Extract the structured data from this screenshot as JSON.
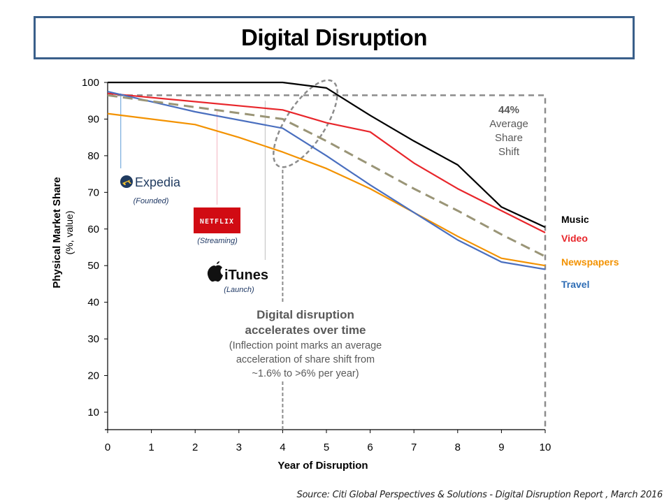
{
  "title": "Digital Disruption",
  "source": "Source: Citi Global Perspectives & Solutions - Digital Disruption Report , March 2016",
  "chart_data": {
    "type": "line",
    "title": "Digital Disruption",
    "xlabel": "Year of Disruption",
    "ylabel": "Physical Market Share",
    "ylabel_sub": "(%, value)",
    "x": [
      0,
      1,
      2,
      3,
      4,
      5,
      6,
      7,
      8,
      9,
      10
    ],
    "xlim": [
      0,
      10
    ],
    "ylim": [
      5,
      100
    ],
    "xticks": [
      "0",
      "1",
      "2",
      "3",
      "4",
      "5",
      "6",
      "7",
      "8",
      "9",
      "10"
    ],
    "yticks": [
      100,
      90,
      80,
      70,
      60,
      50,
      40,
      30,
      20,
      10
    ],
    "grid": false,
    "legend_position": "right",
    "series": [
      {
        "name": "Music",
        "color": "#000000",
        "style": "solid",
        "points": [
          [
            0,
            100
          ],
          [
            4,
            100
          ],
          [
            5,
            98.5
          ],
          [
            6,
            91
          ],
          [
            7,
            84
          ],
          [
            8,
            77.5
          ],
          [
            9,
            66
          ],
          [
            10,
            60.5
          ]
        ]
      },
      {
        "name": "Video",
        "color": "#e8262b",
        "style": "solid",
        "points": [
          [
            0,
            97
          ],
          [
            4,
            92.5
          ],
          [
            5,
            89
          ],
          [
            6,
            86.5
          ],
          [
            7,
            78
          ],
          [
            8,
            71
          ],
          [
            9,
            65
          ],
          [
            10,
            59
          ]
        ]
      },
      {
        "name": "Newspapers",
        "color": "#f39200",
        "style": "solid",
        "points": [
          [
            0,
            91.5
          ],
          [
            2,
            88.5
          ],
          [
            3,
            85
          ],
          [
            4,
            81
          ],
          [
            5,
            76.5
          ],
          [
            6,
            71
          ],
          [
            7,
            64.5
          ],
          [
            8,
            58
          ],
          [
            9,
            52
          ],
          [
            10,
            50
          ]
        ]
      },
      {
        "name": "Travel",
        "color": "#4a6fbf",
        "style": "solid",
        "points": [
          [
            0,
            97.5
          ],
          [
            2,
            92
          ],
          [
            4,
            87.5
          ],
          [
            5,
            80
          ],
          [
            6,
            72
          ],
          [
            7,
            64.5
          ],
          [
            8,
            57
          ],
          [
            9,
            51
          ],
          [
            10,
            49
          ]
        ]
      },
      {
        "name": "Average",
        "color": "#9a9577",
        "style": "dashed",
        "show_in_legend": false,
        "points": [
          [
            0,
            96.5
          ],
          [
            4,
            90
          ],
          [
            5,
            84
          ],
          [
            6,
            77.5
          ],
          [
            7,
            71
          ],
          [
            8,
            65
          ],
          [
            9,
            58.5
          ],
          [
            10,
            52.5
          ]
        ]
      }
    ],
    "legend": [
      {
        "label": "Music",
        "color": "#000000"
      },
      {
        "label": "Video",
        "color": "#e8262b"
      },
      {
        "label": "Newspapers",
        "color": "#f39200"
      },
      {
        "label": "Travel",
        "color": "#2e6db5"
      }
    ],
    "reference_lines": {
      "start_level": 96.5,
      "end_year": 10,
      "inflection_year": 4
    },
    "annotations": {
      "share_shift": {
        "value": "44%",
        "lines": [
          "Average",
          "Share",
          "Shift"
        ]
      },
      "inflection": {
        "headline": [
          "Digital disruption",
          "accelerates over time"
        ],
        "detail": [
          "(Inflection point marks an average",
          "acceleration of share shift from",
          "~1.6% to >6% per year)"
        ]
      },
      "events": [
        {
          "brand": "Expedia",
          "caption": "(Founded)",
          "year": 0.3,
          "marker_color": "#5b9bd5"
        },
        {
          "brand": "NETFLIX",
          "caption": "(Streaming)",
          "year": 2.5,
          "marker_color": "#f4b6c2"
        },
        {
          "brand": "iTunes",
          "caption": "(Launch)",
          "year": 3.6,
          "marker_color": "#bfbfbf"
        }
      ]
    }
  }
}
